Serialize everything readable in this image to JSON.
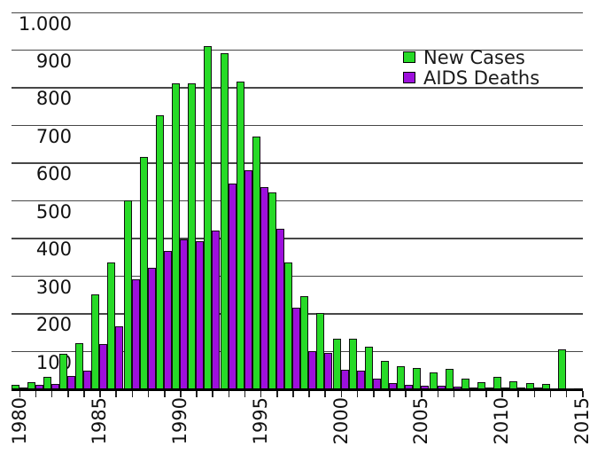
{
  "legend": {
    "items": [
      {
        "label": "New Cases",
        "color": "#27DA27"
      },
      {
        "label": "AIDS Deaths",
        "color": "#9D10DC"
      }
    ]
  },
  "colors": {
    "new_cases": "#27DA27",
    "aids_deaths": "#9D10DC",
    "grid": "#474747",
    "axis": "#000000",
    "text": "#111111"
  },
  "y_axis": {
    "tick_labels": [
      "1.000",
      "900",
      "800",
      "700",
      "600",
      "500",
      "400",
      "300",
      "200",
      "100"
    ],
    "tick_values": [
      1000,
      900,
      800,
      700,
      600,
      500,
      400,
      300,
      200,
      100
    ]
  },
  "x_axis": {
    "labeled_years": [
      "1980",
      "1985",
      "1990",
      "1995",
      "2000",
      "2005",
      "2010",
      "2015"
    ],
    "first_tick_year": 1980,
    "last_tick_year": 2015
  },
  "chart_data": {
    "type": "bar",
    "title": "",
    "xlabel": "",
    "ylabel": "",
    "ylim": [
      0,
      1000
    ],
    "grid": "horizontal",
    "legend_position": "upper right",
    "categories": [
      1980,
      1981,
      1982,
      1983,
      1984,
      1985,
      1986,
      1987,
      1988,
      1989,
      1990,
      1991,
      1992,
      1993,
      1994,
      1995,
      1996,
      1997,
      1998,
      1999,
      2000,
      2001,
      2002,
      2003,
      2004,
      2005,
      2006,
      2007,
      2008,
      2009,
      2010,
      2011,
      2012,
      2013,
      2014
    ],
    "series": [
      {
        "name": "New Cases",
        "color": "#27DA27",
        "values": [
          10,
          17,
          30,
          92,
          120,
          250,
          335,
          500,
          615,
          725,
          810,
          810,
          910,
          890,
          815,
          670,
          520,
          335,
          245,
          200,
          133,
          133,
          110,
          72,
          60,
          55,
          42,
          52,
          26,
          16,
          30,
          20,
          13,
          12,
          103
        ]
      },
      {
        "name": "AIDS Deaths",
        "color": "#9D10DC",
        "values": [
          3,
          9,
          12,
          33,
          47,
          118,
          165,
          290,
          320,
          365,
          395,
          390,
          420,
          545,
          580,
          535,
          425,
          215,
          100,
          95,
          50,
          48,
          26,
          15,
          10,
          8,
          6,
          5,
          3,
          3,
          2,
          2,
          2,
          1,
          1
        ]
      }
    ]
  }
}
